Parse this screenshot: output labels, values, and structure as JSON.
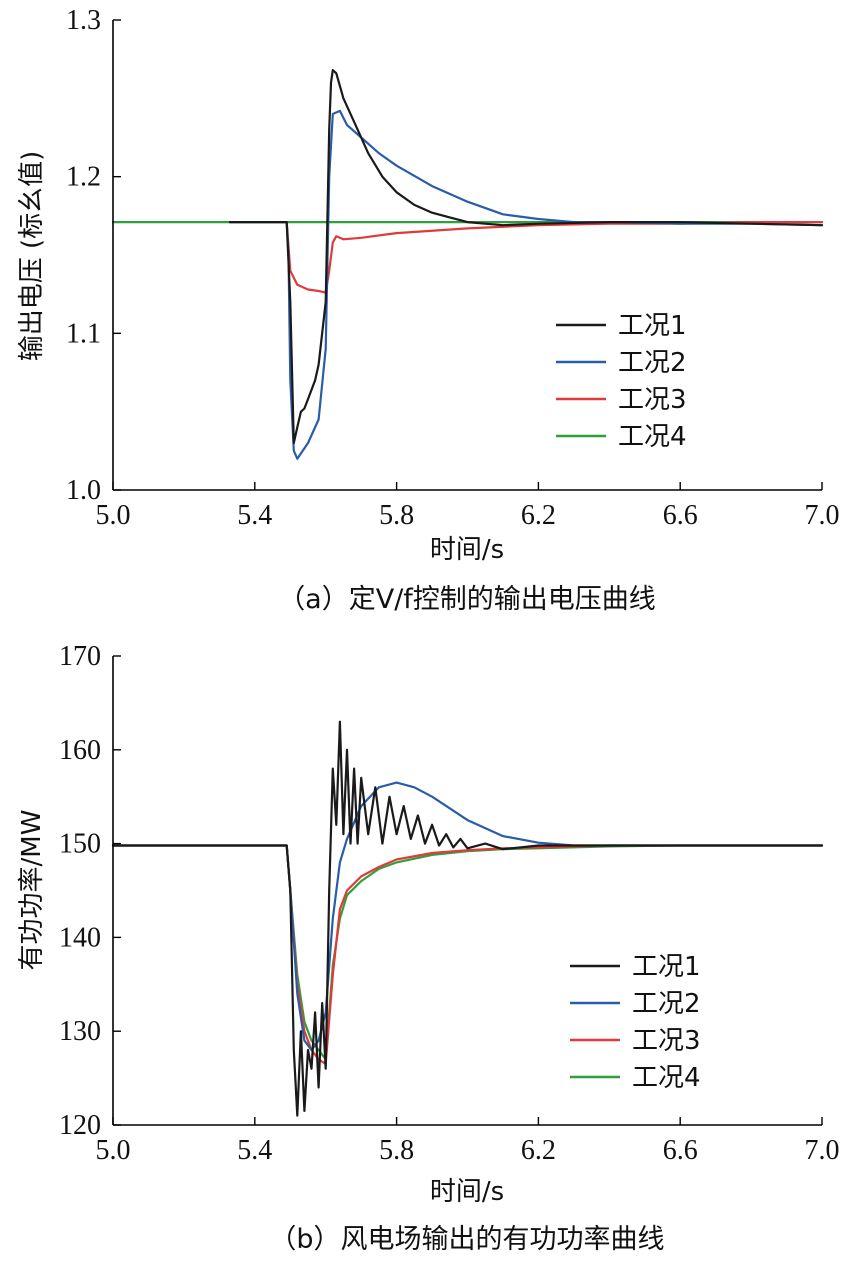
{
  "chart_data": [
    {
      "type": "line",
      "caption": "（a）定V/f控制的输出电压曲线",
      "xlabel": "时间/s",
      "ylabel": "输出电压 (标幺值)",
      "xlim": [
        5.0,
        7.0
      ],
      "ylim": [
        1.0,
        1.3
      ],
      "xticks": [
        "5.0",
        "5.4",
        "5.8",
        "6.2",
        "6.6",
        "7.0"
      ],
      "yticks": [
        "1.0",
        "1.1",
        "1.2",
        "1.3"
      ],
      "legend_position": "lower-right",
      "series": [
        {
          "name": "工况1",
          "color": "#1a1a1a",
          "x": [
            5.33,
            5.49,
            5.5,
            5.51,
            5.52,
            5.53,
            5.54,
            5.55,
            5.57,
            5.58,
            5.6,
            5.61,
            5.615,
            5.62,
            5.63,
            5.65,
            5.68,
            5.72,
            5.76,
            5.8,
            5.85,
            5.9,
            5.95,
            6.0,
            6.05,
            6.1,
            6.2,
            6.4,
            6.6,
            6.8,
            7.0
          ],
          "y": [
            1.171,
            1.171,
            1.12,
            1.03,
            1.04,
            1.05,
            1.052,
            1.058,
            1.07,
            1.08,
            1.12,
            1.23,
            1.26,
            1.268,
            1.266,
            1.25,
            1.235,
            1.215,
            1.2,
            1.19,
            1.182,
            1.177,
            1.174,
            1.171,
            1.17,
            1.169,
            1.17,
            1.171,
            1.171,
            1.17,
            1.169
          ]
        },
        {
          "name": "工况2",
          "color": "#2a5ca8",
          "x": [
            5.33,
            5.49,
            5.495,
            5.5,
            5.51,
            5.52,
            5.55,
            5.58,
            5.6,
            5.61,
            5.62,
            5.64,
            5.66,
            5.7,
            5.75,
            5.8,
            5.9,
            6.0,
            6.1,
            6.2,
            6.3,
            6.4,
            6.6,
            6.8,
            7.0
          ],
          "y": [
            1.171,
            1.171,
            1.15,
            1.07,
            1.025,
            1.02,
            1.03,
            1.045,
            1.09,
            1.2,
            1.24,
            1.242,
            1.233,
            1.225,
            1.215,
            1.207,
            1.194,
            1.184,
            1.176,
            1.173,
            1.171,
            1.171,
            1.17,
            1.17,
            1.169
          ]
        },
        {
          "name": "工况3",
          "color": "#e03a3a",
          "x": [
            5.49,
            5.5,
            5.52,
            5.55,
            5.58,
            5.6,
            5.61,
            5.62,
            5.63,
            5.65,
            5.7,
            5.8,
            6.0,
            6.2,
            6.4,
            6.6,
            6.8,
            7.0
          ],
          "y": [
            1.171,
            1.14,
            1.131,
            1.128,
            1.127,
            1.126,
            1.14,
            1.158,
            1.162,
            1.16,
            1.161,
            1.164,
            1.167,
            1.169,
            1.17,
            1.17,
            1.171,
            1.171
          ],
          "x_note": "",
          "y_note": ""
        },
        {
          "name": "工况4",
          "color": "#2ea03a",
          "x": [
            5.0,
            5.5,
            6.0,
            6.5,
            7.0
          ],
          "y": [
            1.171,
            1.171,
            1.171,
            1.171,
            1.171
          ]
        }
      ]
    },
    {
      "type": "line",
      "caption": "（b）风电场输出的有功功率曲线",
      "xlabel": "时间/s",
      "ylabel": "有功功率/MW",
      "xlim": [
        5.0,
        7.0
      ],
      "ylim": [
        120,
        170
      ],
      "xticks": [
        "5.0",
        "5.4",
        "5.8",
        "6.2",
        "6.6",
        "7.0"
      ],
      "yticks": [
        "120",
        "130",
        "140",
        "150",
        "160",
        "170"
      ],
      "legend_position": "lower-right",
      "series": [
        {
          "name": "工况1",
          "color": "#1a1a1a",
          "x": [
            5.0,
            5.49,
            5.5,
            5.51,
            5.52,
            5.53,
            5.54,
            5.55,
            5.56,
            5.57,
            5.58,
            5.59,
            5.6,
            5.61,
            5.62,
            5.63,
            5.64,
            5.65,
            5.66,
            5.67,
            5.68,
            5.69,
            5.7,
            5.72,
            5.74,
            5.76,
            5.78,
            5.8,
            5.82,
            5.84,
            5.86,
            5.88,
            5.9,
            5.92,
            5.94,
            5.96,
            5.98,
            6.0,
            6.05,
            6.1,
            6.2,
            6.4,
            6.6,
            6.8,
            7.0
          ],
          "y": [
            149.8,
            149.8,
            145,
            128,
            121,
            130,
            121.5,
            128,
            126,
            132,
            124,
            133,
            126,
            145,
            158,
            152,
            163,
            151,
            160,
            150,
            158,
            150,
            157,
            151,
            156,
            150,
            155,
            151,
            154,
            150.5,
            153,
            150,
            152,
            149.8,
            151,
            149.6,
            150.5,
            149.5,
            150,
            149.4,
            149.8,
            149.8,
            149.8,
            149.8,
            149.8
          ]
        },
        {
          "name": "工况2",
          "color": "#2a5ca8",
          "x": [
            5.0,
            5.49,
            5.5,
            5.52,
            5.54,
            5.56,
            5.58,
            5.6,
            5.62,
            5.64,
            5.66,
            5.7,
            5.75,
            5.8,
            5.85,
            5.9,
            6.0,
            6.1,
            6.2,
            6.3,
            6.4,
            6.6,
            7.0
          ],
          "y": [
            149.8,
            149.8,
            145,
            134,
            129,
            128,
            129,
            132,
            142,
            148,
            150.5,
            154,
            156,
            156.5,
            156,
            155,
            152.5,
            150.8,
            150.1,
            149.8,
            149.8,
            149.8,
            149.8
          ]
        },
        {
          "name": "工况3",
          "color": "#e03a3a",
          "x": [
            5.0,
            5.49,
            5.5,
            5.52,
            5.54,
            5.56,
            5.58,
            5.6,
            5.62,
            5.64,
            5.66,
            5.7,
            5.75,
            5.8,
            5.9,
            6.0,
            6.1,
            6.2,
            6.4,
            6.6,
            7.0
          ],
          "y": [
            149.8,
            149.8,
            145,
            135,
            130,
            128,
            127,
            126.5,
            136,
            143,
            145,
            146.5,
            147.5,
            148.3,
            149,
            149.3,
            149.5,
            149.6,
            149.8,
            149.8,
            149.8
          ]
        },
        {
          "name": "工况4",
          "color": "#2ea03a",
          "x": [
            5.0,
            5.49,
            5.5,
            5.52,
            5.54,
            5.56,
            5.58,
            5.6,
            5.62,
            5.64,
            5.66,
            5.7,
            5.75,
            5.8,
            5.9,
            6.0,
            6.1,
            6.2,
            6.4,
            6.6,
            7.0
          ],
          "y": [
            149.8,
            149.8,
            145,
            136,
            131,
            129,
            128,
            127,
            137,
            142,
            144.5,
            146,
            147.3,
            148,
            148.8,
            149.2,
            149.4,
            149.5,
            149.7,
            149.8,
            149.8
          ]
        }
      ]
    }
  ]
}
